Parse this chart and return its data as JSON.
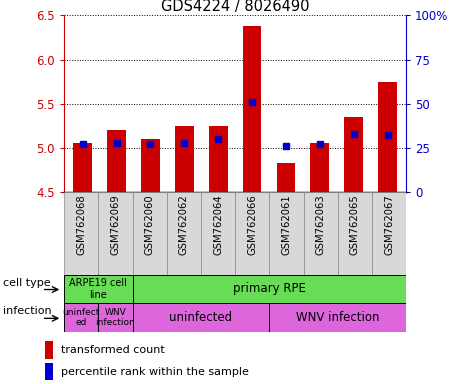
{
  "title": "GDS4224 / 8026490",
  "samples": [
    "GSM762068",
    "GSM762069",
    "GSM762060",
    "GSM762062",
    "GSM762064",
    "GSM762066",
    "GSM762061",
    "GSM762063",
    "GSM762065",
    "GSM762067"
  ],
  "transformed_count": [
    5.05,
    5.2,
    5.1,
    5.25,
    5.25,
    6.38,
    4.83,
    5.05,
    5.35,
    5.75
  ],
  "percentile_rank": [
    27,
    28,
    27,
    28,
    30,
    51,
    26,
    27,
    33,
    32
  ],
  "ylim_left": [
    4.5,
    6.5
  ],
  "ylim_right": [
    0,
    100
  ],
  "yticks_left": [
    4.5,
    5.0,
    5.5,
    6.0,
    6.5
  ],
  "yticks_right": [
    0,
    25,
    50,
    75,
    100
  ],
  "ytick_labels_right": [
    "0",
    "25",
    "50",
    "75",
    "100%"
  ],
  "bar_color": "#cc0000",
  "dot_color": "#0000cc",
  "bar_bottom": 4.5,
  "cell_type_blocks": [
    {
      "label": "ARPE19 cell\nline",
      "start": 0,
      "end": 2,
      "color": "#66dd55"
    },
    {
      "label": "primary RPE",
      "start": 2,
      "end": 10,
      "color": "#66dd55"
    }
  ],
  "infection_blocks": [
    {
      "label": "uninfect\ned",
      "start": 0,
      "end": 1,
      "color": "#dd66dd"
    },
    {
      "label": "WNV\ninfection",
      "start": 1,
      "end": 2,
      "color": "#dd66dd"
    },
    {
      "label": "uninfected",
      "start": 2,
      "end": 6,
      "color": "#dd66dd"
    },
    {
      "label": "WNV infection",
      "start": 6,
      "end": 10,
      "color": "#dd66dd"
    }
  ],
  "cell_type_row_label": "cell type",
  "infection_row_label": "infection",
  "legend_items": [
    {
      "color": "#cc0000",
      "label": "transformed count"
    },
    {
      "color": "#0000cc",
      "label": "percentile rank within the sample"
    }
  ],
  "tick_color_left": "#cc0000",
  "tick_color_right": "#0000cc",
  "xlabels_bg_color": "#d8d8d8",
  "xlabels_border_color": "#888888"
}
